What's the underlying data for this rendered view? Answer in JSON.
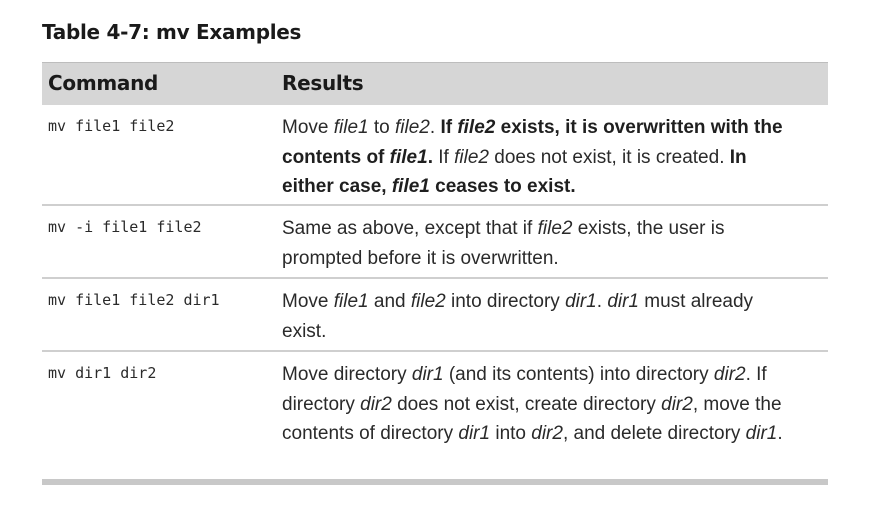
{
  "caption": "Table 4-7: mv Examples",
  "headers": {
    "command": "Command",
    "results": "Results"
  },
  "rows": [
    {
      "command": "mv file1 file2",
      "result": [
        {
          "t": "Move "
        },
        {
          "t": "file1",
          "i": true
        },
        {
          "t": " to "
        },
        {
          "t": "file2",
          "i": true
        },
        {
          "t": ". "
        },
        {
          "t": "If ",
          "b": true
        },
        {
          "t": "file2",
          "b": true,
          "i": true
        },
        {
          "t": " exists, it is overwritten with the contents of ",
          "b": true
        },
        {
          "t": "file1",
          "b": true,
          "i": true
        },
        {
          "t": ".",
          "b": true
        },
        {
          "t": " If "
        },
        {
          "t": "file2",
          "i": true
        },
        {
          "t": " does not exist, it is created. "
        },
        {
          "t": "In either case, ",
          "b": true
        },
        {
          "t": "file1",
          "b": true,
          "i": true
        },
        {
          "t": " ceases to exist.",
          "b": true
        }
      ]
    },
    {
      "command": "mv -i file1 file2",
      "result": [
        {
          "t": "Same as above, except that if "
        },
        {
          "t": "file2",
          "i": true
        },
        {
          "t": " exists, the user is prompted before it is overwritten."
        }
      ]
    },
    {
      "command": "mv file1 file2 dir1",
      "result": [
        {
          "t": "Move "
        },
        {
          "t": "file1",
          "i": true
        },
        {
          "t": " and "
        },
        {
          "t": "file2",
          "i": true
        },
        {
          "t": " into directory "
        },
        {
          "t": "dir1",
          "i": true
        },
        {
          "t": ". "
        },
        {
          "t": "dir1",
          "i": true
        },
        {
          "t": " must already exist."
        }
      ]
    },
    {
      "command": "mv dir1 dir2",
      "result": [
        {
          "t": "Move directory "
        },
        {
          "t": "dir1",
          "i": true
        },
        {
          "t": " (and its contents) into directory "
        },
        {
          "t": "dir2",
          "i": true
        },
        {
          "t": ". If directory "
        },
        {
          "t": "dir2",
          "i": true
        },
        {
          "t": " does not exist, create directory "
        },
        {
          "t": "dir2",
          "i": true
        },
        {
          "t": ", move the contents of directory "
        },
        {
          "t": "dir1",
          "i": true
        },
        {
          "t": " into "
        },
        {
          "t": "dir2",
          "i": true
        },
        {
          "t": ", and delete directory "
        },
        {
          "t": "dir1",
          "i": true
        },
        {
          "t": "."
        }
      ]
    }
  ]
}
